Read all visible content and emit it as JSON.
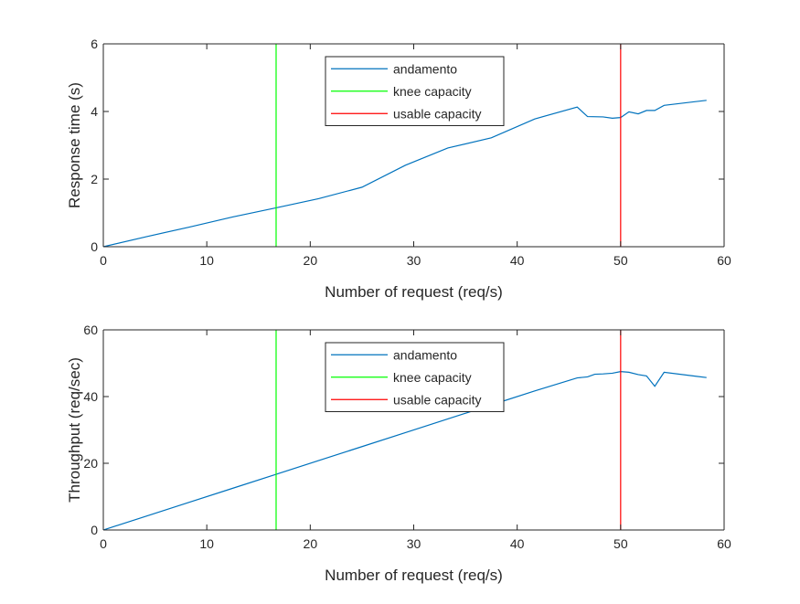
{
  "chart_data": [
    {
      "type": "line",
      "xlabel": "Number of request (req/s)",
      "ylabel": "Response time (s)",
      "xlim": [
        0,
        60
      ],
      "ylim": [
        0,
        6
      ],
      "xticks": [
        0,
        10,
        20,
        30,
        40,
        50,
        60
      ],
      "yticks": [
        0,
        2,
        4,
        6
      ],
      "legend_position": "top-center",
      "series": [
        {
          "name": "andamento",
          "color": "#0072BD",
          "x": [
            0,
            4.2,
            8.3,
            12.5,
            16.7,
            20.8,
            25.0,
            29.2,
            33.3,
            37.5,
            41.7,
            45.8,
            46.8,
            48.3,
            49.2,
            50.0,
            50.8,
            51.7,
            52.5,
            53.3,
            54.2,
            58.3
          ],
          "y": [
            0,
            0.3,
            0.58,
            0.88,
            1.15,
            1.42,
            1.76,
            2.41,
            2.92,
            3.22,
            3.78,
            4.13,
            3.85,
            3.84,
            3.8,
            3.82,
            3.99,
            3.93,
            4.03,
            4.03,
            4.18,
            4.33
          ]
        },
        {
          "name": "knee capacity",
          "color": "#00FF00",
          "x": [
            16.7,
            16.7
          ],
          "y": [
            0,
            6
          ]
        },
        {
          "name": "usable capacity",
          "color": "#FF0000",
          "x": [
            50,
            50
          ],
          "y": [
            0,
            6
          ]
        }
      ]
    },
    {
      "type": "line",
      "xlabel": "Number of request (req/s)",
      "ylabel": "Throughput (req/sec)",
      "xlim": [
        0,
        60
      ],
      "ylim": [
        0,
        60
      ],
      "xticks": [
        0,
        10,
        20,
        30,
        40,
        50,
        60
      ],
      "yticks": [
        0,
        20,
        40,
        60
      ],
      "legend_position": "top-center",
      "series": [
        {
          "name": "andamento",
          "color": "#0072BD",
          "x": [
            0,
            4.2,
            8.3,
            12.5,
            16.7,
            20.8,
            25.0,
            29.2,
            33.3,
            37.5,
            41.7,
            45.8,
            46.8,
            47.5,
            48.3,
            49.2,
            50.0,
            50.8,
            51.7,
            52.5,
            53.3,
            54.2,
            58.3
          ],
          "y": [
            0,
            4.2,
            8.3,
            12.5,
            16.7,
            20.8,
            25.0,
            29.2,
            33.3,
            37.5,
            41.7,
            45.6,
            45.9,
            46.7,
            46.8,
            47.0,
            47.5,
            47.3,
            46.6,
            46.2,
            43.1,
            47.3,
            45.7
          ]
        },
        {
          "name": "knee capacity",
          "color": "#00FF00",
          "x": [
            16.7,
            16.7
          ],
          "y": [
            0,
            60
          ]
        },
        {
          "name": "usable capacity",
          "color": "#FF0000",
          "x": [
            50,
            50
          ],
          "y": [
            0,
            60
          ]
        }
      ]
    }
  ]
}
